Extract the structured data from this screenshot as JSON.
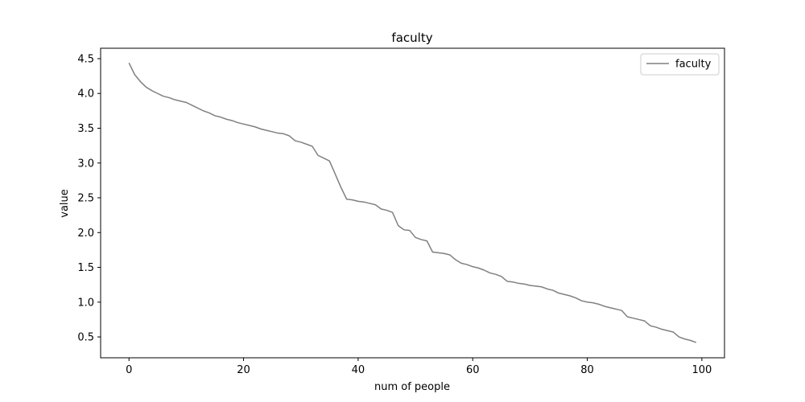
{
  "chart_data": {
    "type": "line",
    "title": "faculty",
    "xlabel": "num of people",
    "ylabel": "value",
    "xlim": [
      -4.95,
      103.95
    ],
    "ylim": [
      0.2,
      4.65
    ],
    "xticks": [
      0,
      20,
      40,
      60,
      80,
      100
    ],
    "yticks": [
      0.5,
      1.0,
      1.5,
      2.0,
      2.5,
      3.0,
      3.5,
      4.0,
      4.5
    ],
    "xtick_labels": [
      "0",
      "20",
      "40",
      "60",
      "80",
      "100"
    ],
    "ytick_labels": [
      "0.5",
      "1.0",
      "1.5",
      "2.0",
      "2.5",
      "3.0",
      "3.5",
      "4.0",
      "4.5"
    ],
    "grid": false,
    "legend": {
      "position": "top-right",
      "entries": [
        "faculty"
      ]
    },
    "series": [
      {
        "name": "faculty",
        "color": "#808080",
        "x": [
          0,
          1,
          2,
          3,
          4,
          5,
          6,
          7,
          8,
          9,
          10,
          11,
          12,
          13,
          14,
          15,
          16,
          17,
          18,
          19,
          20,
          21,
          22,
          23,
          24,
          25,
          26,
          27,
          28,
          29,
          30,
          31,
          32,
          33,
          34,
          35,
          36,
          37,
          38,
          39,
          40,
          41,
          42,
          43,
          44,
          45,
          46,
          47,
          48,
          49,
          50,
          51,
          52,
          53,
          54,
          55,
          56,
          57,
          58,
          59,
          60,
          61,
          62,
          63,
          64,
          65,
          66,
          67,
          68,
          69,
          70,
          71,
          72,
          73,
          74,
          75,
          76,
          77,
          78,
          79,
          80,
          81,
          82,
          83,
          84,
          85,
          86,
          87,
          88,
          89,
          90,
          91,
          92,
          93,
          94,
          95,
          96,
          97,
          98,
          99
        ],
        "values": [
          4.44,
          4.27,
          4.17,
          4.09,
          4.04,
          4.0,
          3.96,
          3.94,
          3.91,
          3.89,
          3.87,
          3.83,
          3.79,
          3.75,
          3.72,
          3.68,
          3.66,
          3.63,
          3.61,
          3.58,
          3.56,
          3.54,
          3.52,
          3.49,
          3.47,
          3.45,
          3.43,
          3.42,
          3.39,
          3.32,
          3.3,
          3.27,
          3.24,
          3.11,
          3.07,
          3.03,
          2.84,
          2.65,
          2.48,
          2.47,
          2.45,
          2.44,
          2.42,
          2.4,
          2.34,
          2.32,
          2.29,
          2.1,
          2.04,
          2.03,
          1.93,
          1.9,
          1.88,
          1.72,
          1.71,
          1.7,
          1.68,
          1.61,
          1.56,
          1.54,
          1.51,
          1.49,
          1.46,
          1.42,
          1.4,
          1.37,
          1.3,
          1.29,
          1.27,
          1.26,
          1.24,
          1.23,
          1.22,
          1.19,
          1.17,
          1.13,
          1.11,
          1.09,
          1.06,
          1.02,
          1.0,
          0.99,
          0.97,
          0.94,
          0.92,
          0.9,
          0.88,
          0.79,
          0.77,
          0.75,
          0.73,
          0.66,
          0.64,
          0.61,
          0.59,
          0.57,
          0.5,
          0.47,
          0.45,
          0.42
        ]
      }
    ]
  }
}
